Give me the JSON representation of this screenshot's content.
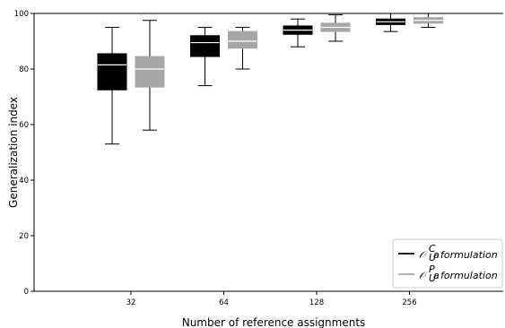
{
  "chart_data": {
    "type": "box",
    "xlabel": "Number of reference assignments",
    "ylabel": "Generalization index",
    "ylim": [
      0,
      100
    ],
    "yticks": [
      0,
      20,
      40,
      60,
      80,
      100
    ],
    "categories": [
      "32",
      "64",
      "128",
      "256"
    ],
    "legend_position": "bottom-right",
    "series": [
      {
        "name": "formulation",
        "symbol": "𝒪",
        "superscript": "C",
        "subscript": "U",
        "subscript_sup": "a",
        "color": "#000000",
        "median_color": "#ffffff",
        "boxes": [
          {
            "min": 53,
            "q1": 72.5,
            "median": 81.5,
            "q3": 85.5,
            "max": 95
          },
          {
            "min": 74,
            "q1": 84.5,
            "median": 89.5,
            "q3": 92,
            "max": 95
          },
          {
            "min": 88,
            "q1": 92.5,
            "median": 94,
            "q3": 95.5,
            "max": 98
          },
          {
            "min": 93.5,
            "q1": 96,
            "median": 97,
            "q3": 98,
            "max": 100
          }
        ]
      },
      {
        "name": "formulation",
        "symbol": "𝒪",
        "superscript": "P",
        "subscript": "U",
        "subscript_sup": "a",
        "color": "#a6a6a6",
        "median_color": "#ffffff",
        "boxes": [
          {
            "min": 58,
            "q1": 73.5,
            "median": 80,
            "q3": 84.5,
            "max": 97.5
          },
          {
            "min": 80,
            "q1": 87.5,
            "median": 90,
            "q3": 93.5,
            "max": 95
          },
          {
            "min": 90,
            "q1": 93.5,
            "median": 95,
            "q3": 96.5,
            "max": 99.5
          },
          {
            "min": 95,
            "q1": 96.5,
            "median": 97.5,
            "q3": 98.5,
            "max": 100
          }
        ]
      }
    ]
  }
}
